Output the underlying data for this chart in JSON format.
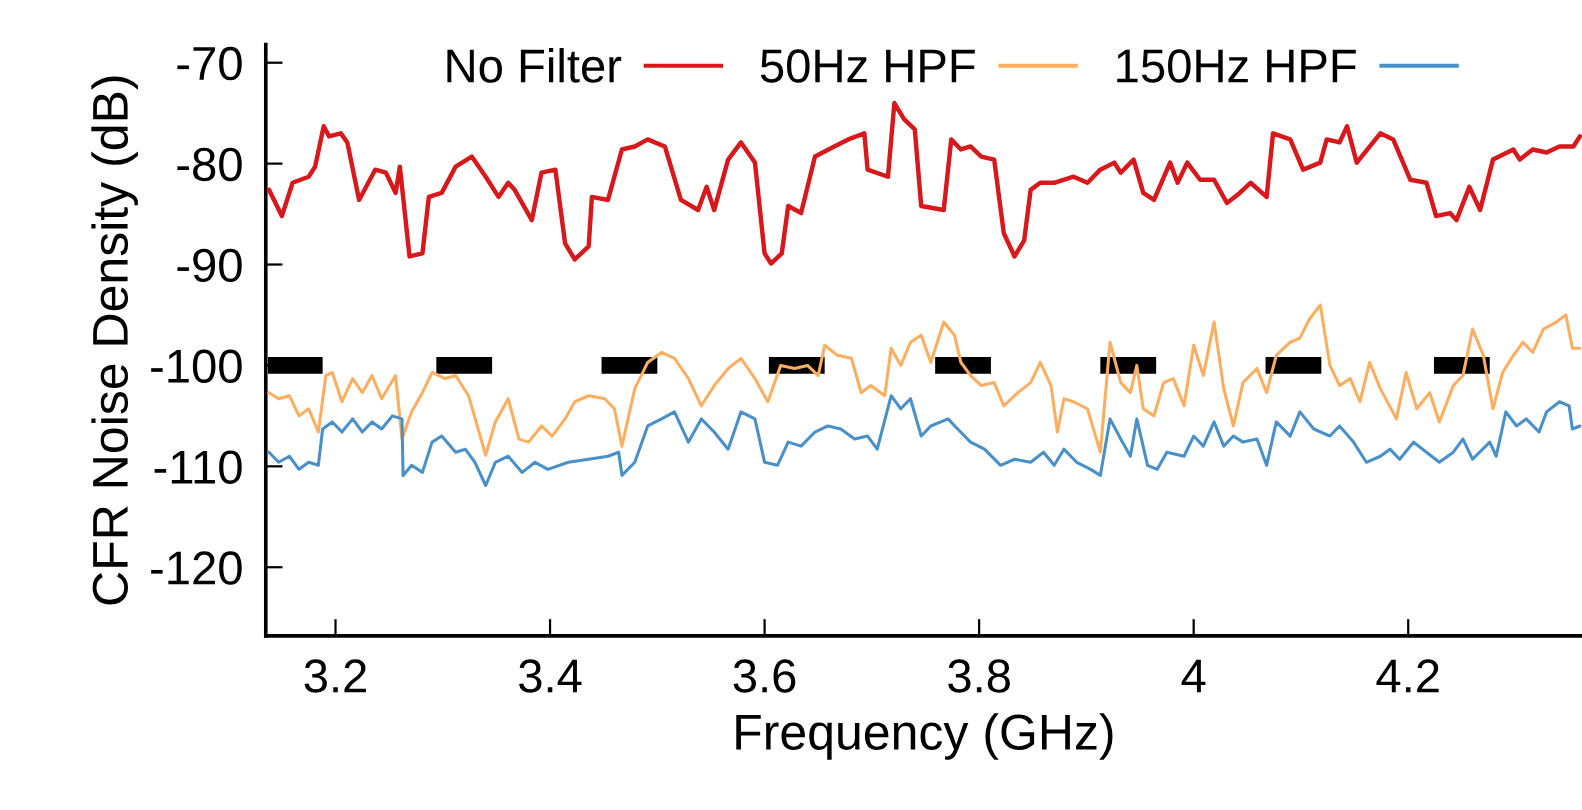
{
  "chart_data": {
    "type": "line",
    "xlabel": "Frequency (GHz)",
    "ylabel": "CFR Noise Density (dB)",
    "xlim": [
      3.135,
      4.362
    ],
    "ylim": [
      -126.8,
      -68.2
    ],
    "xticks": [
      3.2,
      3.4,
      3.6,
      3.8,
      4,
      4.2
    ],
    "yticks": [
      -70,
      -80,
      -90,
      -100,
      -110,
      -120
    ],
    "grid": false,
    "legend": "top",
    "marker": "none",
    "line_style": "solid",
    "series": [
      {
        "name": "No Filter",
        "color": "#d7191c",
        "x": [
          3.138,
          3.15,
          3.16,
          3.175,
          3.181,
          3.189,
          3.194,
          3.205,
          3.211,
          3.222,
          3.237,
          3.247,
          3.256,
          3.26,
          3.269,
          3.281,
          3.287,
          3.299,
          3.312,
          3.327,
          3.34,
          3.352,
          3.361,
          3.367,
          3.383,
          3.392,
          3.405,
          3.414,
          3.423,
          3.436,
          3.439,
          3.454,
          3.467,
          3.479,
          3.491,
          3.507,
          3.522,
          3.538,
          3.546,
          3.553,
          3.566,
          3.578,
          3.591,
          3.6,
          3.606,
          3.616,
          3.622,
          3.634,
          3.647,
          3.665,
          3.678,
          3.693,
          3.696,
          3.715,
          3.721,
          3.73,
          3.74,
          3.746,
          3.767,
          3.774,
          3.783,
          3.792,
          3.802,
          3.814,
          3.823,
          3.833,
          3.842,
          3.848,
          3.857,
          3.87,
          3.888,
          3.901,
          3.913,
          3.926,
          3.932,
          3.944,
          3.953,
          3.963,
          3.978,
          3.985,
          3.994,
          4.006,
          4.019,
          4.031,
          4.043,
          4.053,
          4.068,
          4.074,
          4.09,
          4.102,
          4.118,
          4.124,
          4.136,
          4.143,
          4.152,
          4.174,
          4.186,
          4.202,
          4.217,
          4.226,
          4.239,
          4.245,
          4.257,
          4.267,
          4.279,
          4.298,
          4.304,
          4.316,
          4.329,
          4.341,
          4.354,
          4.36
        ],
        "values": [
          -82.6,
          -85.2,
          -81.9,
          -81.3,
          -80.3,
          -76.3,
          -77.3,
          -77.0,
          -77.9,
          -83.6,
          -80.6,
          -80.9,
          -82.9,
          -80.3,
          -89.2,
          -88.9,
          -83.3,
          -82.9,
          -80.3,
          -79.3,
          -81.3,
          -83.3,
          -81.9,
          -82.6,
          -85.6,
          -80.9,
          -80.6,
          -87.9,
          -89.5,
          -88.2,
          -83.3,
          -83.6,
          -78.6,
          -78.3,
          -77.6,
          -78.3,
          -83.6,
          -84.6,
          -82.3,
          -84.6,
          -79.6,
          -77.9,
          -79.9,
          -88.9,
          -89.9,
          -88.9,
          -84.2,
          -84.9,
          -79.3,
          -78.3,
          -77.6,
          -77.0,
          -80.6,
          -81.3,
          -74.0,
          -75.6,
          -76.6,
          -84.2,
          -84.6,
          -77.6,
          -78.6,
          -78.3,
          -79.3,
          -79.6,
          -86.9,
          -89.2,
          -87.6,
          -82.6,
          -81.9,
          -81.9,
          -81.3,
          -81.9,
          -80.6,
          -79.9,
          -80.9,
          -79.6,
          -82.9,
          -83.6,
          -79.9,
          -81.9,
          -79.9,
          -81.6,
          -81.6,
          -83.9,
          -82.9,
          -81.9,
          -83.3,
          -77.0,
          -77.6,
          -80.6,
          -79.9,
          -77.6,
          -77.9,
          -76.3,
          -79.9,
          -77.0,
          -77.6,
          -81.6,
          -81.9,
          -85.2,
          -84.9,
          -85.6,
          -82.3,
          -84.6,
          -79.6,
          -78.6,
          -79.6,
          -78.6,
          -78.9,
          -78.3,
          -78.3,
          -77.3
        ]
      },
      {
        "name": "50Hz HPF",
        "color": "#fdae61",
        "x": [
          3.138,
          3.147,
          3.157,
          3.166,
          3.175,
          3.184,
          3.191,
          3.197,
          3.206,
          3.216,
          3.225,
          3.234,
          3.243,
          3.256,
          3.262,
          3.271,
          3.281,
          3.29,
          3.302,
          3.312,
          3.324,
          3.34,
          3.349,
          3.361,
          3.371,
          3.38,
          3.392,
          3.402,
          3.414,
          3.423,
          3.436,
          3.451,
          3.46,
          3.467,
          3.479,
          3.491,
          3.504,
          3.516,
          3.529,
          3.541,
          3.553,
          3.566,
          3.578,
          3.591,
          3.603,
          3.615,
          3.628,
          3.64,
          3.65,
          3.656,
          3.668,
          3.681,
          3.69,
          3.699,
          3.712,
          3.718,
          3.727,
          3.736,
          3.746,
          3.755,
          3.767,
          3.777,
          3.783,
          3.792,
          3.802,
          3.814,
          3.823,
          3.836,
          3.848,
          3.857,
          3.867,
          3.873,
          3.879,
          3.888,
          3.901,
          3.913,
          3.922,
          3.932,
          3.941,
          3.947,
          3.953,
          3.963,
          3.972,
          3.981,
          3.991,
          4.0,
          4.009,
          4.019,
          4.028,
          4.037,
          4.046,
          4.059,
          4.068,
          4.077,
          4.09,
          4.099,
          4.108,
          4.118,
          4.127,
          4.136,
          4.146,
          4.155,
          4.164,
          4.174,
          4.189,
          4.198,
          4.208,
          4.22,
          4.229,
          4.242,
          4.251,
          4.26,
          4.27,
          4.279,
          4.288,
          4.298,
          4.307,
          4.316,
          4.326,
          4.338,
          4.347,
          4.353,
          4.36
        ],
        "values": [
          -102.7,
          -103.3,
          -103.0,
          -105.0,
          -104.3,
          -106.6,
          -101.0,
          -100.7,
          -103.6,
          -101.3,
          -102.7,
          -101.0,
          -103.3,
          -101.0,
          -107.3,
          -104.6,
          -102.7,
          -100.7,
          -101.3,
          -101.0,
          -103.0,
          -108.9,
          -105.6,
          -103.3,
          -107.3,
          -107.6,
          -106.0,
          -107.0,
          -105.3,
          -103.6,
          -103.0,
          -103.3,
          -104.3,
          -108.0,
          -102.3,
          -99.7,
          -98.7,
          -99.3,
          -101.3,
          -104.0,
          -102.0,
          -100.3,
          -99.3,
          -101.3,
          -103.6,
          -100.0,
          -100.3,
          -100.0,
          -101.0,
          -98.0,
          -99.0,
          -99.3,
          -102.7,
          -102.0,
          -103.0,
          -98.3,
          -100.0,
          -97.7,
          -97.0,
          -99.7,
          -95.7,
          -97.0,
          -99.7,
          -101.0,
          -102.0,
          -101.7,
          -104.0,
          -102.7,
          -101.7,
          -99.7,
          -102.0,
          -106.6,
          -103.3,
          -103.6,
          -104.3,
          -108.6,
          -97.7,
          -101.7,
          -102.7,
          -100.0,
          -104.3,
          -105.0,
          -101.7,
          -101.3,
          -104.0,
          -98.0,
          -101.0,
          -95.7,
          -102.3,
          -106.0,
          -101.7,
          -100.3,
          -102.7,
          -99.0,
          -97.7,
          -97.3,
          -95.4,
          -94.0,
          -100.0,
          -102.0,
          -101.3,
          -103.6,
          -99.7,
          -102.3,
          -105.3,
          -100.7,
          -104.3,
          -102.7,
          -105.6,
          -102.0,
          -101.0,
          -96.4,
          -99.0,
          -104.3,
          -100.7,
          -99.0,
          -97.7,
          -98.7,
          -96.4,
          -95.7,
          -95.0,
          -98.3,
          -98.3
        ]
      },
      {
        "name": "150Hz HPF",
        "color": "#4a90c8",
        "x": [
          3.138,
          3.147,
          3.157,
          3.166,
          3.175,
          3.184,
          3.188,
          3.197,
          3.206,
          3.216,
          3.225,
          3.234,
          3.243,
          3.253,
          3.262,
          3.263,
          3.271,
          3.281,
          3.29,
          3.299,
          3.312,
          3.321,
          3.33,
          3.34,
          3.349,
          3.361,
          3.374,
          3.386,
          3.398,
          3.417,
          3.436,
          3.454,
          3.464,
          3.467,
          3.479,
          3.491,
          3.504,
          3.516,
          3.529,
          3.541,
          3.553,
          3.566,
          3.578,
          3.591,
          3.6,
          3.612,
          3.622,
          3.634,
          3.647,
          3.659,
          3.671,
          3.684,
          3.696,
          3.705,
          3.718,
          3.727,
          3.736,
          3.746,
          3.755,
          3.771,
          3.78,
          3.792,
          3.805,
          3.82,
          3.833,
          3.848,
          3.86,
          3.87,
          3.879,
          3.891,
          3.904,
          3.913,
          3.922,
          3.932,
          3.941,
          3.947,
          3.957,
          3.966,
          3.975,
          3.991,
          4.0,
          4.009,
          4.019,
          4.028,
          4.037,
          4.046,
          4.059,
          4.068,
          4.077,
          4.09,
          4.099,
          4.112,
          4.127,
          4.136,
          4.149,
          4.161,
          4.174,
          4.183,
          4.192,
          4.205,
          4.217,
          4.229,
          4.242,
          4.251,
          4.26,
          4.276,
          4.282,
          4.291,
          4.301,
          4.31,
          4.322,
          4.329,
          4.341,
          4.35,
          4.353,
          4.36
        ],
        "values": [
          -108.6,
          -109.6,
          -109.0,
          -110.3,
          -109.6,
          -109.9,
          -106.3,
          -105.6,
          -106.6,
          -105.3,
          -106.6,
          -105.6,
          -106.3,
          -105.0,
          -105.3,
          -110.9,
          -109.9,
          -110.6,
          -107.6,
          -107.0,
          -108.6,
          -108.3,
          -109.6,
          -111.9,
          -109.6,
          -109.0,
          -110.6,
          -109.6,
          -110.3,
          -109.6,
          -109.3,
          -109.0,
          -108.6,
          -110.9,
          -109.6,
          -106.0,
          -105.3,
          -104.6,
          -107.6,
          -105.3,
          -106.6,
          -108.3,
          -104.6,
          -105.3,
          -109.6,
          -109.9,
          -107.6,
          -108.0,
          -106.6,
          -106.0,
          -106.3,
          -107.3,
          -107.0,
          -108.3,
          -103.0,
          -104.3,
          -103.3,
          -107.0,
          -106.0,
          -105.3,
          -106.3,
          -107.6,
          -108.3,
          -109.9,
          -109.3,
          -109.6,
          -108.6,
          -109.9,
          -108.3,
          -109.6,
          -110.3,
          -110.9,
          -105.3,
          -107.3,
          -109.0,
          -105.3,
          -109.9,
          -110.3,
          -108.6,
          -109.0,
          -107.0,
          -108.0,
          -105.6,
          -108.0,
          -107.0,
          -107.6,
          -107.3,
          -109.9,
          -105.6,
          -107.0,
          -104.6,
          -106.3,
          -107.0,
          -106.0,
          -107.6,
          -109.6,
          -109.0,
          -108.3,
          -109.3,
          -107.6,
          -108.6,
          -109.6,
          -108.6,
          -107.3,
          -109.3,
          -107.6,
          -109.0,
          -104.6,
          -106.0,
          -105.3,
          -106.6,
          -104.6,
          -103.6,
          -104.0,
          -106.3,
          -106.0
        ]
      },
      {
        "color": "#000000",
        "x": [
          3.137,
          3.188,
          3.24,
          3.294,
          3.346,
          3.4,
          3.448,
          3.5,
          3.55,
          3.604,
          3.656,
          3.71,
          3.759,
          3.811,
          3.86,
          3.913,
          3.965,
          4.02,
          4.067,
          4.119,
          4.17,
          4.224,
          4.276
        ],
        "values": [
          -100,
          -100,
          null,
          -100,
          -100,
          null,
          -100,
          -100,
          null,
          -100,
          -100,
          null,
          -100,
          -100,
          null,
          -100,
          -100,
          null,
          -100,
          -100,
          null,
          -100,
          -100
        ]
      }
    ]
  }
}
